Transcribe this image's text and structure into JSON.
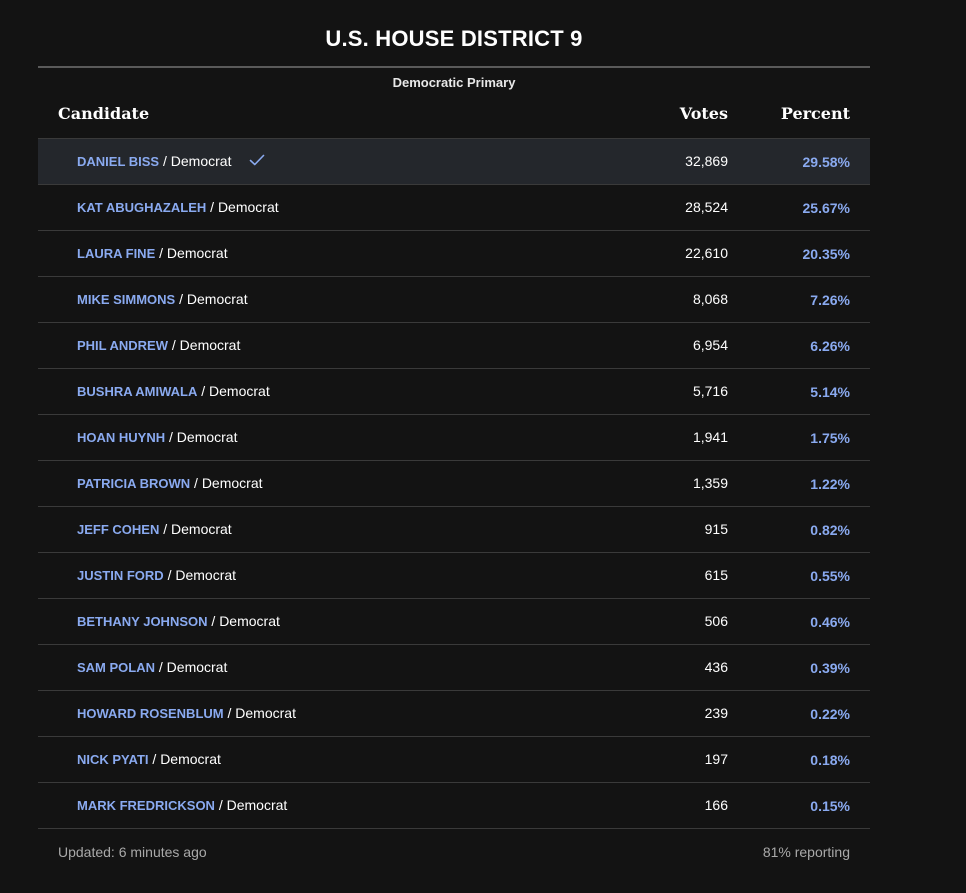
{
  "race": {
    "title": "U.S. HOUSE DISTRICT 9",
    "subtitle": "Democratic Primary"
  },
  "table": {
    "headers": {
      "candidate": "Candidate",
      "votes": "Votes",
      "percent": "Percent"
    },
    "rows": [
      {
        "name": "DANIEL BISS",
        "party": "Democrat",
        "votes": "32,869",
        "percent": "29.58%",
        "winner": true
      },
      {
        "name": "KAT ABUGHAZALEH",
        "party": "Democrat",
        "votes": "28,524",
        "percent": "25.67%"
      },
      {
        "name": "LAURA FINE",
        "party": "Democrat",
        "votes": "22,610",
        "percent": "20.35%"
      },
      {
        "name": "MIKE SIMMONS",
        "party": "Democrat",
        "votes": "8,068",
        "percent": "7.26%"
      },
      {
        "name": "PHIL ANDREW",
        "party": "Democrat",
        "votes": "6,954",
        "percent": "6.26%"
      },
      {
        "name": "BUSHRA AMIWALA",
        "party": "Democrat",
        "votes": "5,716",
        "percent": "5.14%"
      },
      {
        "name": "HOAN HUYNH",
        "party": "Democrat",
        "votes": "1,941",
        "percent": "1.75%"
      },
      {
        "name": "PATRICIA BROWN",
        "party": "Democrat",
        "votes": "1,359",
        "percent": "1.22%"
      },
      {
        "name": "JEFF COHEN",
        "party": "Democrat",
        "votes": "915",
        "percent": "0.82%"
      },
      {
        "name": "JUSTIN FORD",
        "party": "Democrat",
        "votes": "615",
        "percent": "0.55%"
      },
      {
        "name": "BETHANY JOHNSON",
        "party": "Democrat",
        "votes": "506",
        "percent": "0.46%"
      },
      {
        "name": "SAM POLAN",
        "party": "Democrat",
        "votes": "436",
        "percent": "0.39%"
      },
      {
        "name": "HOWARD ROSENBLUM",
        "party": "Democrat",
        "votes": "239",
        "percent": "0.22%"
      },
      {
        "name": "NICK PYATI",
        "party": "Democrat",
        "votes": "197",
        "percent": "0.18%"
      },
      {
        "name": "MARK FREDRICKSON",
        "party": "Democrat",
        "votes": "166",
        "percent": "0.15%"
      }
    ],
    "separator": "/"
  },
  "footer": {
    "updated": "Updated: 6 minutes ago",
    "reporting": "81% reporting"
  },
  "icons": {
    "winner": "checkmark-icon"
  },
  "colors": {
    "background": "#131313",
    "winner_row": "#24272c",
    "accent": "#8aaaf0",
    "text": "#ffffff",
    "muted": "#a9a9a9",
    "divider": "#3a3a3a"
  }
}
